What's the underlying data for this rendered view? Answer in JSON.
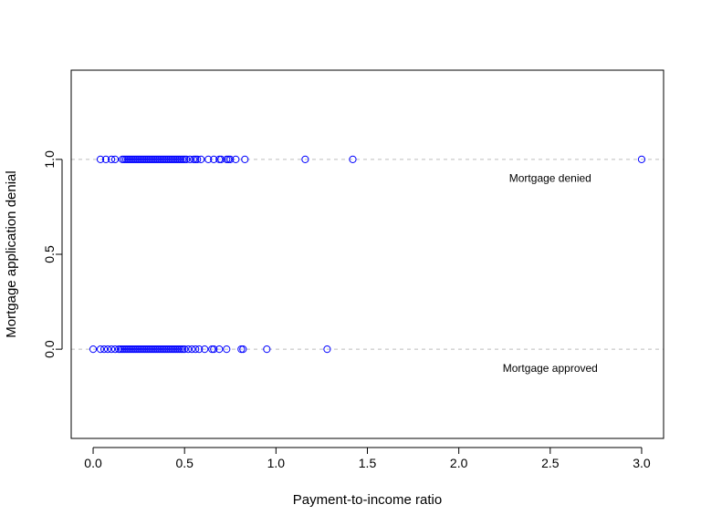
{
  "chart_data": {
    "type": "scatter",
    "title": "",
    "xlabel": "Payment-to-income ratio",
    "ylabel": "Mortgage application denial",
    "xlim": [
      -0.12,
      3.12
    ],
    "ylim": [
      -0.47,
      1.47
    ],
    "x_ticks": [
      0.0,
      0.5,
      1.0,
      1.5,
      2.0,
      2.5,
      3.0
    ],
    "x_tick_labels": [
      "0.0",
      "0.5",
      "1.0",
      "1.5",
      "2.0",
      "2.5",
      "3.0"
    ],
    "y_ticks": [
      0.0,
      0.5,
      1.0
    ],
    "y_tick_labels": [
      "0.0",
      "0.5",
      "1.0"
    ],
    "grid": false,
    "reference_lines": [
      0,
      1
    ],
    "colors": {
      "points": "#0000ff",
      "reference_lines": "#bebebe",
      "frame": "#000000"
    },
    "annotations": [
      {
        "text": "Mortgage denied",
        "x": 2.5,
        "y": 0.9
      },
      {
        "text": "Mortgage approved",
        "x": 2.5,
        "y": -0.1
      }
    ],
    "series": [
      {
        "name": "",
        "marker": "open-circle",
        "points": [
          {
            "x": 0.04,
            "y": 1
          },
          {
            "x": 0.07,
            "y": 1
          },
          {
            "x": 0.1,
            "y": 1
          },
          {
            "x": 0.12,
            "y": 1
          },
          {
            "x": 0.16,
            "y": 1
          },
          {
            "x": 0.17,
            "y": 1
          },
          {
            "x": 0.18,
            "y": 1
          },
          {
            "x": 0.19,
            "y": 1
          },
          {
            "x": 0.2,
            "y": 1
          },
          {
            "x": 0.21,
            "y": 1
          },
          {
            "x": 0.22,
            "y": 1
          },
          {
            "x": 0.23,
            "y": 1
          },
          {
            "x": 0.24,
            "y": 1
          },
          {
            "x": 0.25,
            "y": 1
          },
          {
            "x": 0.26,
            "y": 1
          },
          {
            "x": 0.27,
            "y": 1
          },
          {
            "x": 0.28,
            "y": 1
          },
          {
            "x": 0.29,
            "y": 1
          },
          {
            "x": 0.3,
            "y": 1
          },
          {
            "x": 0.31,
            "y": 1
          },
          {
            "x": 0.32,
            "y": 1
          },
          {
            "x": 0.33,
            "y": 1
          },
          {
            "x": 0.34,
            "y": 1
          },
          {
            "x": 0.35,
            "y": 1
          },
          {
            "x": 0.36,
            "y": 1
          },
          {
            "x": 0.37,
            "y": 1
          },
          {
            "x": 0.38,
            "y": 1
          },
          {
            "x": 0.39,
            "y": 1
          },
          {
            "x": 0.4,
            "y": 1
          },
          {
            "x": 0.41,
            "y": 1
          },
          {
            "x": 0.42,
            "y": 1
          },
          {
            "x": 0.43,
            "y": 1
          },
          {
            "x": 0.44,
            "y": 1
          },
          {
            "x": 0.45,
            "y": 1
          },
          {
            "x": 0.46,
            "y": 1
          },
          {
            "x": 0.47,
            "y": 1
          },
          {
            "x": 0.48,
            "y": 1
          },
          {
            "x": 0.49,
            "y": 1
          },
          {
            "x": 0.5,
            "y": 1
          },
          {
            "x": 0.51,
            "y": 1
          },
          {
            "x": 0.53,
            "y": 1
          },
          {
            "x": 0.55,
            "y": 1
          },
          {
            "x": 0.56,
            "y": 1
          },
          {
            "x": 0.57,
            "y": 1
          },
          {
            "x": 0.59,
            "y": 1
          },
          {
            "x": 0.63,
            "y": 1
          },
          {
            "x": 0.66,
            "y": 1
          },
          {
            "x": 0.69,
            "y": 1
          },
          {
            "x": 0.7,
            "y": 1
          },
          {
            "x": 0.73,
            "y": 1
          },
          {
            "x": 0.74,
            "y": 1
          },
          {
            "x": 0.75,
            "y": 1
          },
          {
            "x": 0.78,
            "y": 1
          },
          {
            "x": 0.83,
            "y": 1
          },
          {
            "x": 1.16,
            "y": 1
          },
          {
            "x": 1.42,
            "y": 1
          },
          {
            "x": 3.0,
            "y": 1
          },
          {
            "x": 0.0,
            "y": 0
          },
          {
            "x": 0.04,
            "y": 0
          },
          {
            "x": 0.06,
            "y": 0
          },
          {
            "x": 0.08,
            "y": 0
          },
          {
            "x": 0.1,
            "y": 0
          },
          {
            "x": 0.12,
            "y": 0
          },
          {
            "x": 0.14,
            "y": 0
          },
          {
            "x": 0.15,
            "y": 0
          },
          {
            "x": 0.16,
            "y": 0
          },
          {
            "x": 0.17,
            "y": 0
          },
          {
            "x": 0.18,
            "y": 0
          },
          {
            "x": 0.19,
            "y": 0
          },
          {
            "x": 0.2,
            "y": 0
          },
          {
            "x": 0.21,
            "y": 0
          },
          {
            "x": 0.22,
            "y": 0
          },
          {
            "x": 0.23,
            "y": 0
          },
          {
            "x": 0.24,
            "y": 0
          },
          {
            "x": 0.25,
            "y": 0
          },
          {
            "x": 0.26,
            "y": 0
          },
          {
            "x": 0.27,
            "y": 0
          },
          {
            "x": 0.28,
            "y": 0
          },
          {
            "x": 0.29,
            "y": 0
          },
          {
            "x": 0.3,
            "y": 0
          },
          {
            "x": 0.31,
            "y": 0
          },
          {
            "x": 0.32,
            "y": 0
          },
          {
            "x": 0.33,
            "y": 0
          },
          {
            "x": 0.34,
            "y": 0
          },
          {
            "x": 0.35,
            "y": 0
          },
          {
            "x": 0.36,
            "y": 0
          },
          {
            "x": 0.37,
            "y": 0
          },
          {
            "x": 0.38,
            "y": 0
          },
          {
            "x": 0.39,
            "y": 0
          },
          {
            "x": 0.4,
            "y": 0
          },
          {
            "x": 0.41,
            "y": 0
          },
          {
            "x": 0.42,
            "y": 0
          },
          {
            "x": 0.43,
            "y": 0
          },
          {
            "x": 0.44,
            "y": 0
          },
          {
            "x": 0.45,
            "y": 0
          },
          {
            "x": 0.46,
            "y": 0
          },
          {
            "x": 0.47,
            "y": 0
          },
          {
            "x": 0.48,
            "y": 0
          },
          {
            "x": 0.49,
            "y": 0
          },
          {
            "x": 0.5,
            "y": 0
          },
          {
            "x": 0.52,
            "y": 0
          },
          {
            "x": 0.54,
            "y": 0
          },
          {
            "x": 0.56,
            "y": 0
          },
          {
            "x": 0.58,
            "y": 0
          },
          {
            "x": 0.61,
            "y": 0
          },
          {
            "x": 0.65,
            "y": 0
          },
          {
            "x": 0.66,
            "y": 0
          },
          {
            "x": 0.69,
            "y": 0
          },
          {
            "x": 0.73,
            "y": 0
          },
          {
            "x": 0.81,
            "y": 0
          },
          {
            "x": 0.82,
            "y": 0
          },
          {
            "x": 0.95,
            "y": 0
          },
          {
            "x": 1.28,
            "y": 0
          }
        ]
      }
    ]
  }
}
